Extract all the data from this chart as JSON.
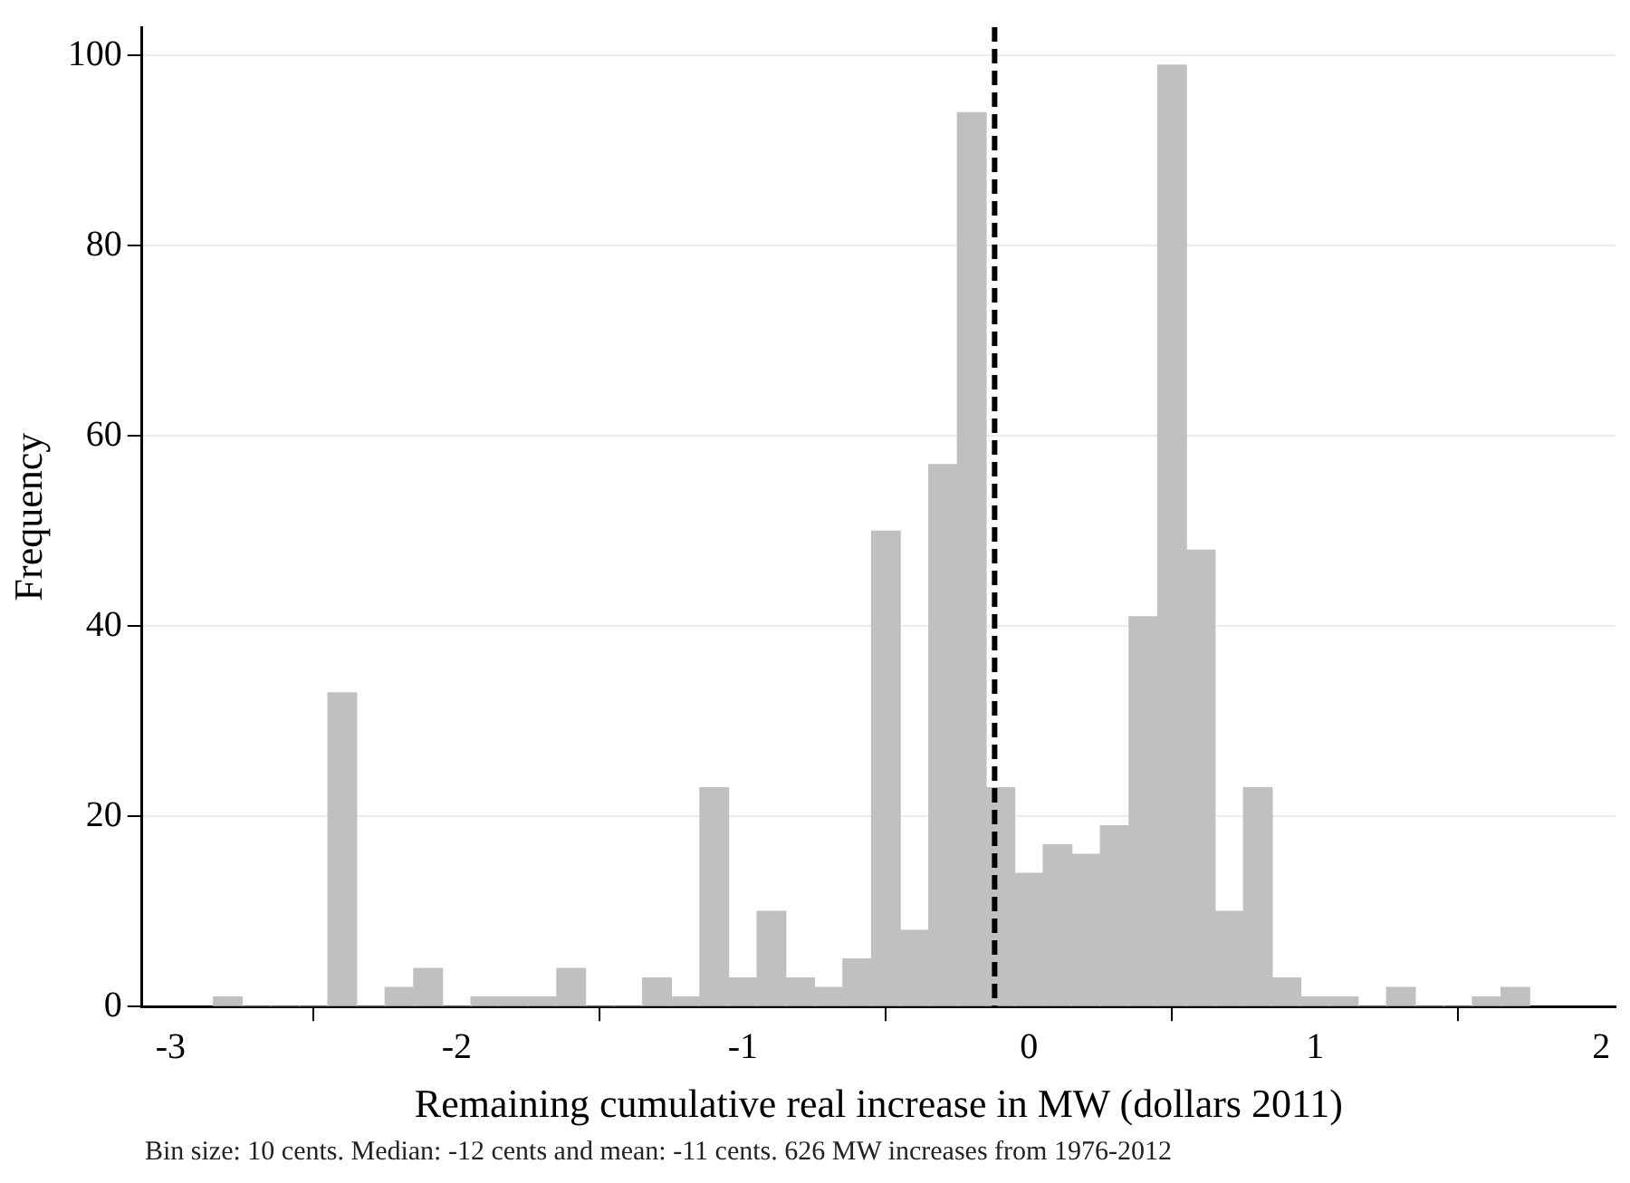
{
  "chart_data": {
    "type": "histogram",
    "xlabel": "Remaining cumulative real increase in MW (dollars 2011)",
    "ylabel": "Frequency",
    "bins": [
      -2.85,
      -2.75,
      -2.65,
      -2.55,
      -2.45,
      -2.35,
      -2.25,
      -2.15,
      -2.05,
      -1.95,
      -1.85,
      -1.75,
      -1.65,
      -1.55,
      -1.45,
      -1.35,
      -1.25,
      -1.15,
      -1.05,
      -0.95,
      -0.85,
      -0.75,
      -0.65,
      -0.55,
      -0.45,
      -0.35,
      -0.25,
      -0.15,
      -0.05,
      0.05,
      0.15,
      0.25,
      0.35,
      0.45,
      0.55,
      0.65,
      0.75,
      0.85,
      0.95,
      1.05,
      1.15,
      1.25,
      1.35,
      1.45,
      1.55,
      1.65,
      1.75
    ],
    "values": [
      1,
      0,
      0,
      0,
      33,
      0,
      2,
      4,
      0,
      1,
      1,
      1,
      4,
      0,
      0,
      3,
      1,
      23,
      3,
      10,
      3,
      2,
      5,
      50,
      8,
      57,
      94,
      23,
      14,
      17,
      16,
      19,
      41,
      99,
      48,
      10,
      23,
      3,
      1,
      1,
      0,
      2,
      0,
      0,
      1,
      2
    ],
    "color": "#c0c0c0",
    "xlim": [
      -3.1,
      2.05
    ],
    "xticks": [
      -3,
      -2,
      -1,
      0,
      1,
      2
    ],
    "ylim": [
      0,
      103
    ],
    "yticks": [
      0,
      20,
      40,
      60,
      80,
      100
    ],
    "grid": "y",
    "ref_lines": [
      {
        "axis": "x",
        "value": -0.12,
        "color": "#000000",
        "line_style": "dashed"
      }
    ],
    "annotations": [
      "Bin size: 10 cents. Median: -12 cents and mean: -11 cents. 626 MW increases from 1976-2012"
    ]
  }
}
